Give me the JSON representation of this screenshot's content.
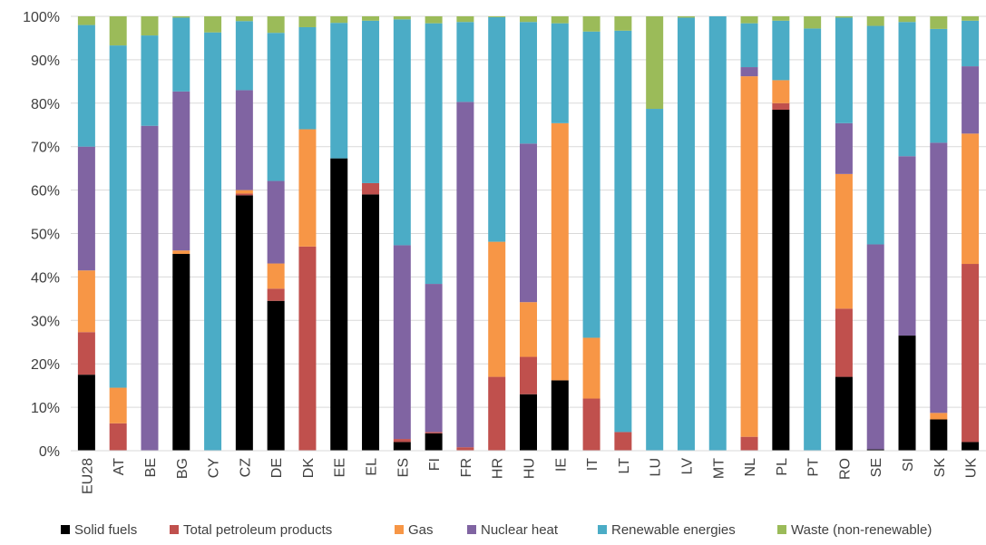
{
  "chart_data": {
    "type": "bar",
    "stacked": "percent",
    "title": "",
    "xlabel": "",
    "ylabel": "",
    "ylim": [
      0,
      100
    ],
    "yticks": [
      "0%",
      "10%",
      "20%",
      "30%",
      "40%",
      "50%",
      "60%",
      "70%",
      "80%",
      "90%",
      "100%"
    ],
    "grid": true,
    "legend_position": "bottom",
    "categories": [
      "EU28",
      "AT",
      "BE",
      "BG",
      "CY",
      "CZ",
      "DE",
      "DK",
      "EE",
      "EL",
      "ES",
      "FI",
      "FR",
      "HR",
      "HU",
      "IE",
      "IT",
      "LT",
      "LU",
      "LV",
      "MT",
      "NL",
      "PL",
      "PT",
      "RO",
      "SE",
      "SI",
      "SK",
      "UK"
    ],
    "series": [
      {
        "name": "Solid fuels",
        "color": "#000000",
        "values": [
          17.5,
          0,
          0,
          45.3,
          0,
          58.8,
          34.5,
          0,
          67.3,
          59,
          2,
          4,
          0,
          0,
          13,
          16.2,
          0,
          0,
          0,
          0,
          0,
          0,
          78.5,
          0,
          17,
          0.3,
          26.5,
          7.2,
          2
        ]
      },
      {
        "name": "Total petroleum products",
        "color": "#c0504d",
        "values": [
          9.8,
          6.3,
          0,
          0,
          0,
          0.4,
          2.8,
          47,
          0,
          2.6,
          0.7,
          0.3,
          0.8,
          17,
          8.6,
          0,
          12,
          4.3,
          0,
          0,
          0,
          3.2,
          1.5,
          0,
          15.7,
          0,
          0,
          0,
          41
        ]
      },
      {
        "name": "Gas",
        "color": "#f79646",
        "values": [
          14.2,
          8.2,
          0,
          0.8,
          0,
          0.8,
          5.8,
          27,
          0,
          0,
          0,
          0,
          0,
          31.1,
          12.6,
          59.2,
          14,
          0,
          0,
          0,
          0,
          83,
          5.3,
          0,
          31,
          0,
          0,
          1.5,
          30
        ]
      },
      {
        "name": "Nuclear heat",
        "color": "#8064a2",
        "values": [
          28.5,
          0,
          74.8,
          36.6,
          0,
          23,
          19,
          0,
          0,
          0,
          44.6,
          34.1,
          79.5,
          0,
          36.5,
          0,
          0,
          0,
          0,
          0,
          0,
          2.1,
          0,
          0,
          11.7,
          47.2,
          41.3,
          62.2,
          15.5
        ]
      },
      {
        "name": "Renewable energies",
        "color": "#4bacc6",
        "values": [
          28,
          78.8,
          20.8,
          17,
          96.3,
          15.9,
          34.1,
          23.5,
          31.2,
          37.4,
          52,
          60,
          18.4,
          51.7,
          28,
          23,
          70.5,
          92.4,
          78.7,
          99.7,
          100,
          10.1,
          13.7,
          97.2,
          24.3,
          50.3,
          30.9,
          26.2,
          10.5
        ]
      },
      {
        "name": "Waste (non-renewable)",
        "color": "#9bbb59",
        "values": [
          2,
          6.7,
          4.4,
          0.3,
          3.7,
          1.1,
          3.8,
          2.5,
          1.5,
          1,
          0.7,
          1.6,
          1.3,
          0.2,
          1.3,
          1.6,
          3.5,
          3.3,
          21.3,
          0.3,
          0,
          1.6,
          1,
          2.8,
          0.3,
          2.2,
          1.3,
          2.9,
          1
        ]
      }
    ]
  }
}
